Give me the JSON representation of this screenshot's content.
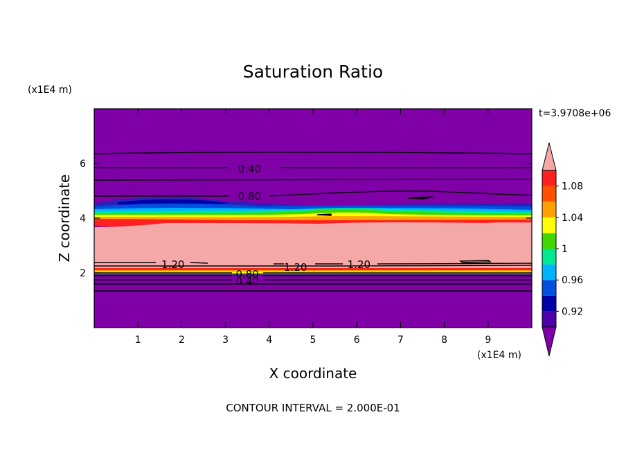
{
  "chart_data": {
    "type": "heatmap",
    "title": "Saturation Ratio",
    "xlabel": "X coordinate",
    "ylabel": "Z coordinate",
    "x_unit": "(x1E4 m)",
    "y_unit": "(x1E4 m)",
    "time_label": "t=3.9708e+06",
    "footer": "CONTOUR INTERVAL = 2.000E-01",
    "xlim": [
      0,
      10
    ],
    "ylim": [
      0,
      8
    ],
    "x_ticks": [
      "1",
      "2",
      "3",
      "4",
      "5",
      "6",
      "7",
      "8",
      "9"
    ],
    "y_ticks": [
      "2",
      "4",
      "6"
    ],
    "colorbar": {
      "levels": [
        0.9,
        0.92,
        0.94,
        0.96,
        0.98,
        1.0,
        1.02,
        1.04,
        1.06,
        1.08,
        1.1
      ],
      "tick_labels": [
        "0.92",
        "0.96",
        "1",
        "1.04",
        "1.08"
      ],
      "under_color": "#8000a8",
      "over_color": "#f5a8a8",
      "colors": [
        "#5000a8",
        "#0000a8",
        "#0050e0",
        "#00b4ff",
        "#00e890",
        "#40d800",
        "#ffff00",
        "#ffa000",
        "#ff5000",
        "#ff2020"
      ]
    },
    "contour_labels": [
      {
        "text": "0.40",
        "x": 3.55,
        "z": 5.8
      },
      {
        "text": "0.80",
        "x": 3.55,
        "z": 4.8
      },
      {
        "text": "1.20",
        "x": 1.8,
        "z": 2.3
      },
      {
        "text": "1.20",
        "x": 4.6,
        "z": 2.2
      },
      {
        "text": "1.20",
        "x": 6.05,
        "z": 2.3
      },
      {
        "text": "0.80",
        "x": 3.5,
        "z": 1.95
      },
      {
        "text": "0.40",
        "x": 3.5,
        "z": 1.7
      }
    ]
  }
}
